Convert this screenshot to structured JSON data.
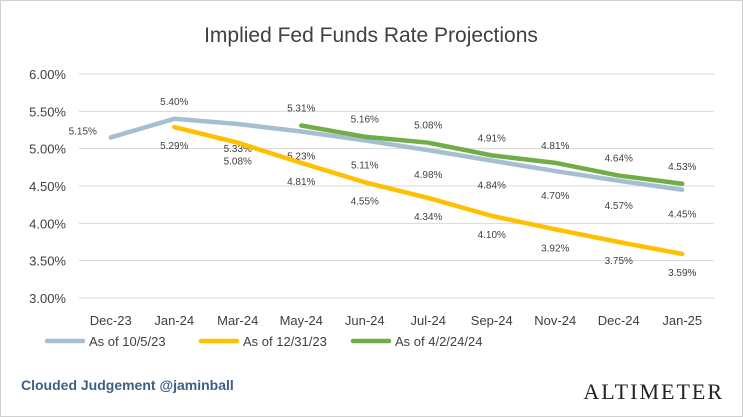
{
  "chart_data": {
    "type": "line",
    "title": "Implied Fed Funds Rate Projections",
    "xlabel": "",
    "ylabel": "",
    "categories": [
      "Dec-23",
      "Jan-24",
      "Mar-24",
      "May-24",
      "Jun-24",
      "Jul-24",
      "Sep-24",
      "Nov-24",
      "Dec-24",
      "Jan-25"
    ],
    "y_ticks": [
      "3.00%",
      "3.50%",
      "4.00%",
      "4.50%",
      "5.00%",
      "5.50%",
      "6.00%"
    ],
    "ylim": [
      3.0,
      6.0
    ],
    "grid": true,
    "legend_position": "bottom-left",
    "series": [
      {
        "name": "As of 10/5/23",
        "color": "#a5bed0",
        "values": [
          5.15,
          5.4,
          5.33,
          5.23,
          5.11,
          4.98,
          4.84,
          4.7,
          4.57,
          4.45
        ],
        "labels": [
          "5.15%",
          "5.40%",
          "5.33%",
          "5.23%",
          "5.11%",
          "4.98%",
          "4.84%",
          "4.70%",
          "4.57%",
          "4.45%"
        ]
      },
      {
        "name": "As of 12/31/23",
        "color": "#ffc000",
        "values": [
          null,
          5.29,
          5.08,
          4.81,
          4.55,
          4.34,
          4.1,
          3.92,
          3.75,
          3.59
        ],
        "labels": [
          "",
          "5.29%",
          "5.08%",
          "4.81%",
          "4.55%",
          "4.34%",
          "4.10%",
          "3.92%",
          "3.75%",
          "3.59%"
        ]
      },
      {
        "name": "As of 4/2/24/24",
        "color": "#70ad47",
        "values": [
          null,
          null,
          null,
          5.31,
          5.16,
          5.08,
          4.91,
          4.81,
          4.64,
          4.53
        ],
        "labels": [
          "",
          "",
          "",
          "5.31%",
          "5.16%",
          "5.08%",
          "4.91%",
          "4.81%",
          "4.64%",
          "4.53%"
        ]
      }
    ]
  },
  "footer": {
    "credit": "Clouded Judgement @jaminball",
    "brand": "ALTIMETER"
  }
}
